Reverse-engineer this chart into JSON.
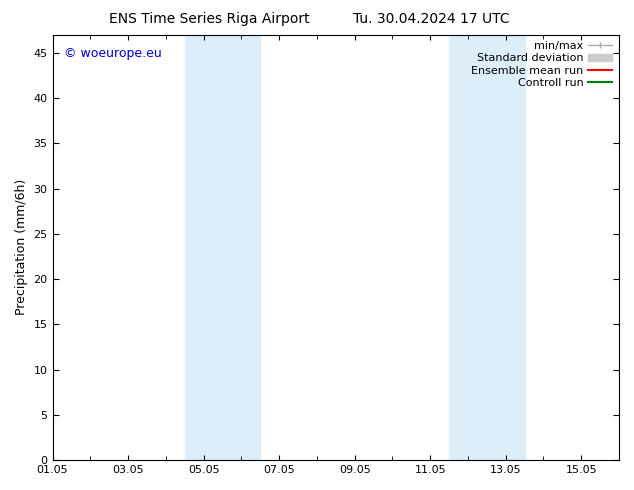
{
  "title_left": "ENS Time Series Riga Airport",
  "title_right": "Tu. 30.04.2024 17 UTC",
  "ylabel": "Precipitation (mm/6h)",
  "watermark": "© woeurope.eu",
  "watermark_color": "#0000cc",
  "ylim": [
    0,
    47
  ],
  "yticks": [
    0,
    5,
    10,
    15,
    20,
    25,
    30,
    35,
    40,
    45
  ],
  "xlim": [
    0,
    15
  ],
  "xtick_labels": [
    "01.05",
    "03.05",
    "05.05",
    "07.05",
    "09.05",
    "11.05",
    "13.05",
    "15.05"
  ],
  "xtick_positions": [
    0,
    2,
    4,
    6,
    8,
    10,
    12,
    14
  ],
  "shaded_regions": [
    {
      "x_start": 3.5,
      "x_end": 5.5,
      "color": "#ddeef9"
    },
    {
      "x_start": 10.5,
      "x_end": 12.5,
      "color": "#ddeef9"
    }
  ],
  "background_color": "#ffffff",
  "legend_items": [
    {
      "label": "min/max",
      "color": "#aaaaaa",
      "lw": 1.0
    },
    {
      "label": "Standard deviation",
      "color": "#cccccc",
      "lw": 5
    },
    {
      "label": "Ensemble mean run",
      "color": "#ff0000",
      "lw": 1.5
    },
    {
      "label": "Controll run",
      "color": "#008000",
      "lw": 1.5
    }
  ],
  "title_fontsize": 10,
  "axis_label_fontsize": 9,
  "tick_fontsize": 8,
  "legend_fontsize": 8,
  "watermark_fontsize": 9
}
